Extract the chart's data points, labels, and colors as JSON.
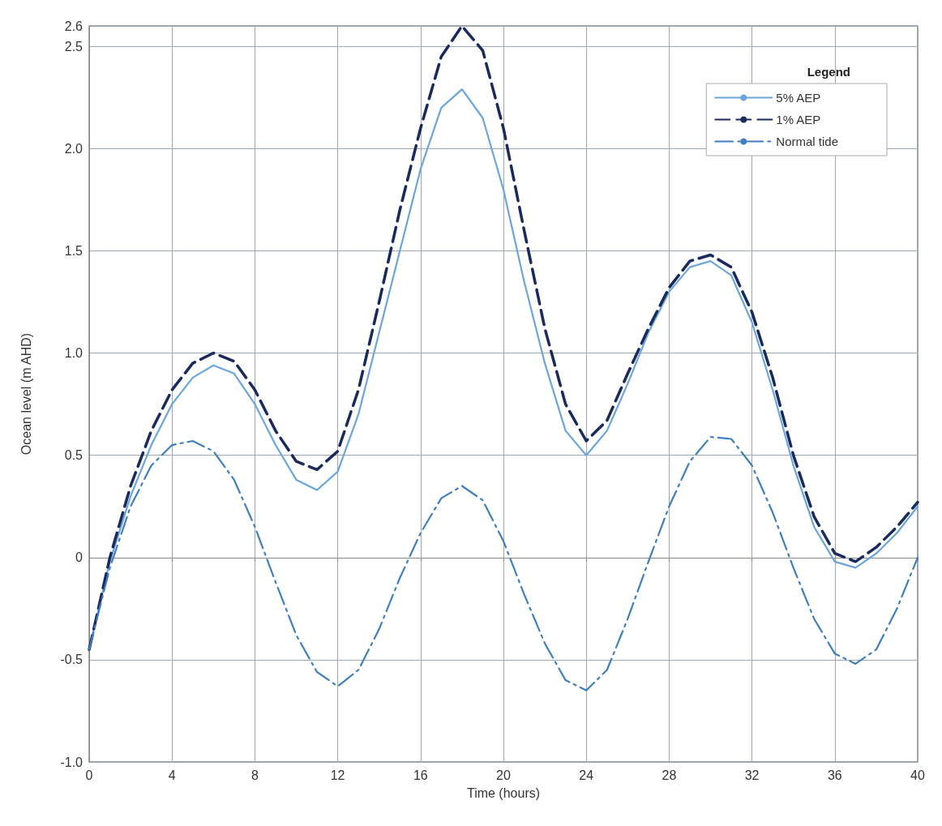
{
  "chart_data": {
    "type": "line",
    "xlabel": "Time (hours)",
    "ylabel": "Ocean level (m AHD)",
    "legend_title": "Legend",
    "legend": "top right",
    "grid": true,
    "marker": "none",
    "x": [
      0,
      1,
      2,
      3,
      4,
      5,
      6,
      7,
      8,
      9,
      10,
      11,
      12,
      13,
      14,
      15,
      16,
      17,
      18,
      19,
      20,
      21,
      22,
      23,
      24,
      25,
      26,
      27,
      28,
      29,
      30,
      31,
      32,
      33,
      34,
      35,
      36,
      37,
      38,
      39,
      40
    ],
    "xlim": [
      0,
      40
    ],
    "xticks": [
      0,
      4,
      8,
      12,
      16,
      20,
      24,
      28,
      32,
      36,
      40
    ],
    "ylim": [
      -1.0,
      2.6
    ],
    "yticks": [
      {
        "value": -1.0,
        "label": "-1.0"
      },
      -0.5,
      0,
      0.5,
      {
        "value": 1.0,
        "label": "1.0"
      },
      1.5,
      {
        "value": 2.0,
        "label": "2.0"
      },
      2.5,
      2.6
    ],
    "series": [
      {
        "name": "5% AEP",
        "color": "#6aa6dc",
        "line_style": "solid",
        "values": [
          -0.45,
          -0.02,
          0.3,
          0.55,
          0.75,
          0.88,
          0.94,
          0.9,
          0.75,
          0.55,
          0.38,
          0.33,
          0.42,
          0.7,
          1.1,
          1.5,
          1.9,
          2.2,
          2.29,
          2.15,
          1.8,
          1.35,
          0.95,
          0.62,
          0.5,
          0.62,
          0.85,
          1.1,
          1.3,
          1.42,
          1.45,
          1.38,
          1.15,
          0.82,
          0.45,
          0.15,
          -0.02,
          -0.05,
          0.02,
          0.12,
          0.25
        ]
      },
      {
        "name": "1% AEP",
        "color": "#1b2a5c",
        "line_style": "dashed",
        "values": [
          -0.45,
          0.0,
          0.35,
          0.62,
          0.82,
          0.95,
          1.0,
          0.96,
          0.82,
          0.62,
          0.47,
          0.43,
          0.52,
          0.82,
          1.25,
          1.7,
          2.1,
          2.45,
          2.6,
          2.48,
          2.1,
          1.6,
          1.12,
          0.75,
          0.57,
          0.67,
          0.9,
          1.12,
          1.32,
          1.45,
          1.48,
          1.42,
          1.2,
          0.88,
          0.5,
          0.2,
          0.02,
          -0.02,
          0.05,
          0.15,
          0.27
        ]
      },
      {
        "name": "Normal tide",
        "color": "#3f7fbf",
        "line_style": "dashdot",
        "values": [
          -0.45,
          -0.05,
          0.25,
          0.45,
          0.55,
          0.57,
          0.52,
          0.38,
          0.15,
          -0.12,
          -0.38,
          -0.56,
          -0.63,
          -0.55,
          -0.35,
          -0.1,
          0.12,
          0.29,
          0.35,
          0.28,
          0.08,
          -0.18,
          -0.42,
          -0.6,
          -0.65,
          -0.55,
          -0.3,
          -0.02,
          0.25,
          0.47,
          0.59,
          0.58,
          0.45,
          0.22,
          -0.05,
          -0.3,
          -0.47,
          -0.52,
          -0.45,
          -0.25,
          0.0
        ]
      }
    ]
  }
}
